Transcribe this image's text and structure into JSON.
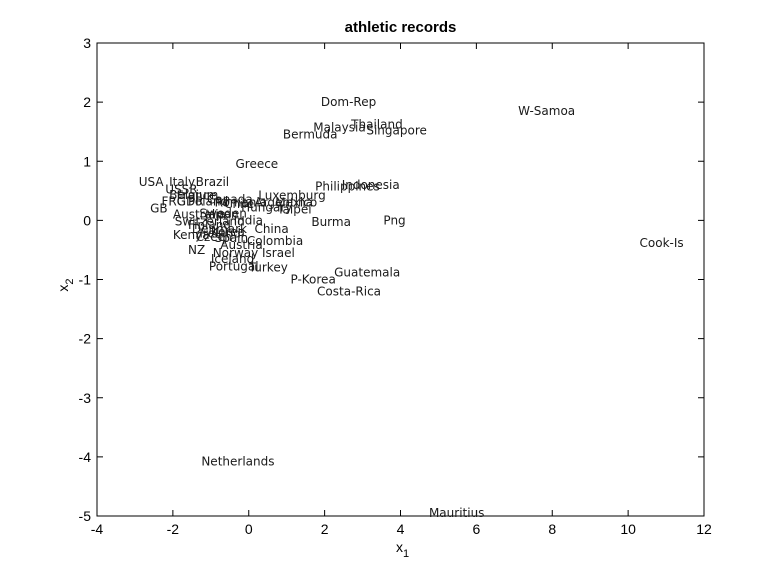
{
  "chart_data": {
    "type": "scatter",
    "title": "athletic records",
    "xlabel": "x",
    "xlabel_sub": "1",
    "ylabel": "x",
    "ylabel_sub": "2",
    "xlim": [
      -4,
      12
    ],
    "ylim": [
      -5,
      3
    ],
    "xticks": [
      -4,
      -2,
      0,
      2,
      4,
      6,
      8,
      10,
      12
    ],
    "yticks": [
      -5,
      -4,
      -3,
      -2,
      -1,
      0,
      1,
      2,
      3
    ],
    "grid": false,
    "points": [
      {
        "label": "Dom-Rep",
        "x": 1.9,
        "y": 2.0
      },
      {
        "label": "W-Samoa",
        "x": 7.1,
        "y": 1.85
      },
      {
        "label": "Malaysia",
        "x": 1.7,
        "y": 1.57
      },
      {
        "label": "Thailand",
        "x": 2.7,
        "y": 1.62
      },
      {
        "label": "Singapore",
        "x": 3.1,
        "y": 1.52
      },
      {
        "label": "Bermuda",
        "x": 0.9,
        "y": 1.45
      },
      {
        "label": "Greece",
        "x": -0.35,
        "y": 0.95
      },
      {
        "label": "USA",
        "x": -2.9,
        "y": 0.65
      },
      {
        "label": "Italy",
        "x": -2.1,
        "y": 0.65
      },
      {
        "label": "Brazil",
        "x": -1.4,
        "y": 0.65
      },
      {
        "label": "USSR",
        "x": -2.2,
        "y": 0.52
      },
      {
        "label": "Belgium",
        "x": -2.1,
        "y": 0.43
      },
      {
        "label": "France",
        "x": -1.9,
        "y": 0.42
      },
      {
        "label": "FRG",
        "x": -2.3,
        "y": 0.32
      },
      {
        "label": "GDR",
        "x": -1.9,
        "y": 0.32
      },
      {
        "label": "Poland",
        "x": -1.6,
        "y": 0.32
      },
      {
        "label": "Canada",
        "x": -1.1,
        "y": 0.35
      },
      {
        "label": "Romania",
        "x": -0.9,
        "y": 0.3
      },
      {
        "label": "Chile",
        "x": -0.65,
        "y": 0.28
      },
      {
        "label": "Hungary",
        "x": -0.2,
        "y": 0.22
      },
      {
        "label": "Luxemburg",
        "x": 0.25,
        "y": 0.42
      },
      {
        "label": "Argentina",
        "x": 0.15,
        "y": 0.3
      },
      {
        "label": "Mexico",
        "x": 0.7,
        "y": 0.3
      },
      {
        "label": "Taipei",
        "x": 0.75,
        "y": 0.18
      },
      {
        "label": "GB",
        "x": -2.6,
        "y": 0.2
      },
      {
        "label": "Australia",
        "x": -2.0,
        "y": 0.1
      },
      {
        "label": "Sweden",
        "x": -1.3,
        "y": 0.12
      },
      {
        "label": "Japan",
        "x": -1.15,
        "y": 0.1
      },
      {
        "label": "Indonesia",
        "x": 2.45,
        "y": 0.6
      },
      {
        "label": "Philippines",
        "x": 1.75,
        "y": 0.57
      },
      {
        "label": "Burma",
        "x": 1.65,
        "y": -0.03
      },
      {
        "label": "Png",
        "x": 3.55,
        "y": 0.0
      },
      {
        "label": "Cook-Is",
        "x": 10.3,
        "y": -0.38
      },
      {
        "label": "Switzerland",
        "x": -1.95,
        "y": -0.02
      },
      {
        "label": "Finland",
        "x": -1.6,
        "y": -0.08
      },
      {
        "label": "Denmark",
        "x": -1.5,
        "y": -0.15
      },
      {
        "label": "India",
        "x": -0.4,
        "y": 0.0
      },
      {
        "label": "Ireland",
        "x": -1.3,
        "y": -0.22
      },
      {
        "label": "Korea",
        "x": -1.0,
        "y": -0.2
      },
      {
        "label": "China",
        "x": 0.15,
        "y": -0.15
      },
      {
        "label": "Kenya",
        "x": -2.0,
        "y": -0.25
      },
      {
        "label": "Czech",
        "x": -1.4,
        "y": -0.28
      },
      {
        "label": "Spain",
        "x": -0.9,
        "y": -0.3
      },
      {
        "label": "Colombia",
        "x": -0.05,
        "y": -0.35
      },
      {
        "label": "Austria",
        "x": -0.75,
        "y": -0.42
      },
      {
        "label": "NZ",
        "x": -1.6,
        "y": -0.5
      },
      {
        "label": "Norway",
        "x": -0.95,
        "y": -0.55
      },
      {
        "label": "Israel",
        "x": 0.35,
        "y": -0.55
      },
      {
        "label": "Iceland",
        "x": -1.0,
        "y": -0.65
      },
      {
        "label": "Portugal",
        "x": -1.05,
        "y": -0.78
      },
      {
        "label": "Turkey",
        "x": 0.0,
        "y": -0.8
      },
      {
        "label": "Guatemala",
        "x": 2.25,
        "y": -0.88
      },
      {
        "label": "P-Korea",
        "x": 1.1,
        "y": -1.0
      },
      {
        "label": "Costa-Rica",
        "x": 1.8,
        "y": -1.2
      },
      {
        "label": "Netherlands",
        "x": -1.25,
        "y": -4.08
      },
      {
        "label": "Mauritius",
        "x": 4.75,
        "y": -4.95
      }
    ]
  }
}
